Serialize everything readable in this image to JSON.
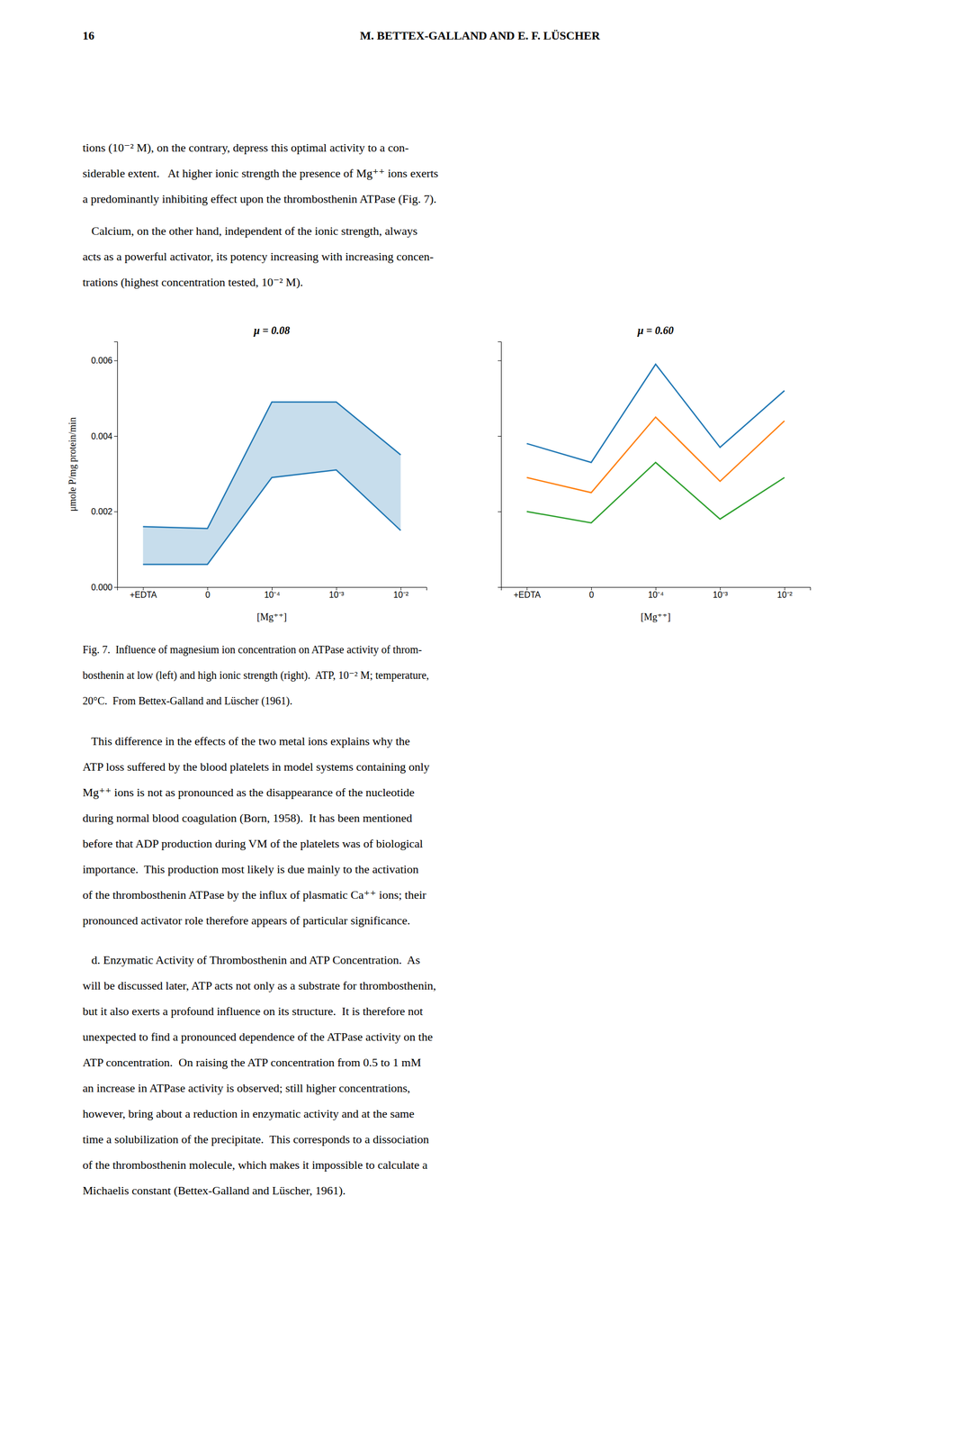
{
  "page_number": "16",
  "header": "M. BETTEX-GALLAND AND E. F. LÜSCHER",
  "para1_lines": [
    "tions (10⁻² M), on the contrary, depress this optimal activity to a con-",
    "siderable extent.   At higher ionic strength the presence of Mg⁺⁺ ions exerts",
    "a predominantly inhibiting effect upon the thrombosthenin ATPase (Fig. 7)."
  ],
  "para2_lines": [
    "   Calcium, on the other hand, independent of the ionic strength, always",
    "acts as a powerful activator, its potency increasing with increasing concen-",
    "trations (highest concentration tested, 10⁻² M)."
  ],
  "chart_data": [
    {
      "type": "area",
      "annotations": [
        "μ = 0.08"
      ],
      "categories": [
        "+EDTA",
        "0",
        "10⁻⁴",
        "10⁻³",
        "10⁻²"
      ],
      "series": [
        {
          "values": [
            0.0016,
            0.00155,
            0.0049,
            0.0049,
            0.0035
          ]
        },
        {
          "values": [
            0.0006,
            0.0006,
            0.0029,
            0.0031,
            0.0015
          ]
        }
      ],
      "xlabel": "[Mg⁺⁺]",
      "ylabel": "μmole P/mg protein/min",
      "ylim": [
        0.0,
        0.0065
      ],
      "yticks": [
        {
          "value": 0.0,
          "label": "0.000"
        },
        {
          "value": 0.002,
          "label": "0.002"
        },
        {
          "value": 0.004,
          "label": "0.004"
        },
        {
          "value": 0.006,
          "label": "0.006"
        }
      ],
      "grid": false
    },
    {
      "type": "line",
      "annotations": [
        "μ = 0.60"
      ],
      "categories": [
        "+EDTA",
        "0",
        "10⁻⁴",
        "10⁻³",
        "10⁻²"
      ],
      "series": [
        {
          "values": [
            0.0038,
            0.0033,
            0.0059,
            0.0037,
            0.0052
          ]
        },
        {
          "values": [
            0.0029,
            0.0025,
            0.0045,
            0.0028,
            0.0044
          ]
        },
        {
          "values": [
            0.002,
            0.0017,
            0.0033,
            0.0018,
            0.0029
          ]
        }
      ],
      "xlabel": "[Mg⁺⁺]",
      "ylim": [
        0.0,
        0.0065
      ],
      "yticks": [
        0.0,
        0.002,
        0.004,
        0.006
      ],
      "tick_labels": "x",
      "grid": false
    }
  ],
  "cap_lines": [
    "Fig. 7.  Influence of magnesium ion concentration on ATPase activity of throm-",
    "bosthenin at low (left) and high ionic strength (right).  ATP, 10⁻² M; temperature,",
    "20°C.  From Bettex-Galland and Lüscher (1961)."
  ],
  "para3_lines": [
    "   This difference in the effects of the two metal ions explains why the",
    "ATP loss suffered by the blood platelets in model systems containing only",
    "Mg⁺⁺ ions is not as pronounced as the disappearance of the nucleotide",
    "during normal blood coagulation (Born, 1958).  It has been mentioned",
    "before that ADP production during VM of the platelets was of biological",
    "importance.  This production most likely is due mainly to the activation",
    "of the thrombosthenin ATPase by the influx of plasmatic Ca⁺⁺ ions; their",
    "pronounced activator role therefore appears of particular significance."
  ],
  "para4_lines": [
    "   d. Enzymatic Activity of Thrombosthenin and ATP Concentration.  As",
    "will be discussed later, ATP acts not only as a substrate for thrombosthenin,",
    "but it also exerts a profound influence on its structure.  It is therefore not",
    "unexpected to find a pronounced dependence of the ATPase activity on the",
    "ATP concentration.  On raising the ATP concentration from 0.5 to 1 mM",
    "an increase in ATPase activity is observed; still higher concentrations,",
    "however, bring about a reduction in enzymatic activity and at the same",
    "time a solubilization of the precipitate.  This corresponds to a dissociation",
    "of the thrombosthenin molecule, which makes it impossible to calculate a",
    "Michaelis constant (Bettex-Galland and Lüscher, 1961)."
  ],
  "bg_color": "#ffffff"
}
